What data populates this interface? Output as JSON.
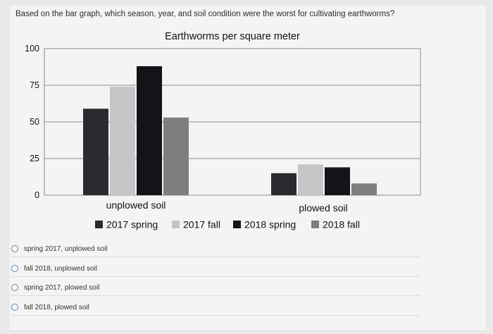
{
  "question": "Based on the bar graph, which season, year, and soil condition were the worst for cultivating earthworms?",
  "chart_data": {
    "type": "bar",
    "title": "Earthworms per square meter",
    "categories": [
      "unplowed soil",
      "plowed soil"
    ],
    "series": [
      {
        "name": "2017 spring",
        "values": [
          59,
          15
        ],
        "color": "#2b2b2f"
      },
      {
        "name": "2017 fall",
        "values": [
          74,
          21
        ],
        "color": "#c4c5c7"
      },
      {
        "name": "2018 spring",
        "values": [
          88,
          19
        ],
        "color": "#141418"
      },
      {
        "name": "2018 fall",
        "values": [
          53,
          8
        ],
        "color": "#7d7e80"
      }
    ],
    "ylim": [
      0,
      100
    ],
    "yticks": [
      "0",
      "25",
      "50",
      "75",
      "100"
    ],
    "grid": true,
    "legend": "bottom"
  },
  "options": [
    {
      "label": "spring 2017, unplowed soil"
    },
    {
      "label": "fall 2018, unplowed soil"
    },
    {
      "label": "spring 2017, plowed soil"
    },
    {
      "label": "fall 2018, plowed soil"
    }
  ]
}
